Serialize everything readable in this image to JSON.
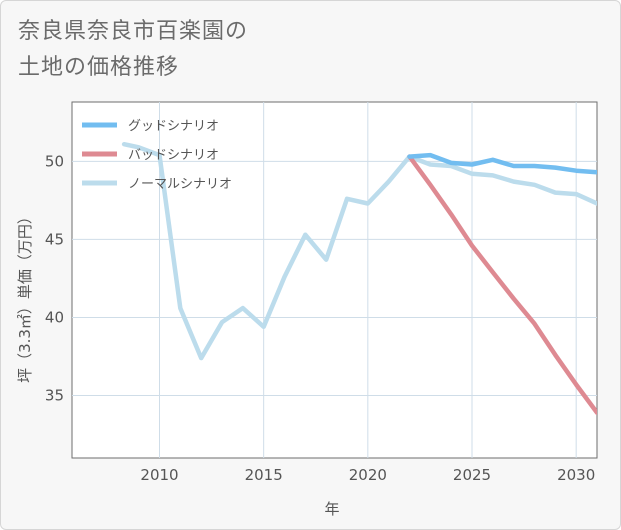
{
  "title": "奈良県奈良市百楽園の\n土地の価格推移",
  "chart_data": {
    "type": "line",
    "xlabel": "年",
    "ylabel": "坪（3.3㎡）単価（万円）",
    "xlim": [
      2005.8,
      2031
    ],
    "ylim": [
      31,
      53.8
    ],
    "x_ticks": [
      2010,
      2015,
      2020,
      2025,
      2030
    ],
    "y_ticks": [
      35,
      40,
      45,
      50
    ],
    "grid": true,
    "legend_position": "top-left",
    "series": [
      {
        "name": "グッドシナリオ",
        "color": "#72bdf0",
        "points": [
          [
            2022,
            50.3
          ],
          [
            2023,
            50.4
          ],
          [
            2024,
            49.9
          ],
          [
            2025,
            49.8
          ],
          [
            2026,
            50.1
          ],
          [
            2027,
            49.7
          ],
          [
            2028,
            49.7
          ],
          [
            2029,
            49.6
          ],
          [
            2030,
            49.4
          ],
          [
            2031,
            49.3
          ]
        ]
      },
      {
        "name": "バッドシナリオ",
        "color": "#de8a92",
        "points": [
          [
            2022,
            50.3
          ],
          [
            2023,
            48.5
          ],
          [
            2024,
            46.6
          ],
          [
            2025,
            44.6
          ],
          [
            2026,
            42.9
          ],
          [
            2027,
            41.2
          ],
          [
            2028,
            39.6
          ],
          [
            2029,
            37.6
          ],
          [
            2030,
            35.7
          ],
          [
            2031,
            33.9
          ]
        ]
      },
      {
        "name": "ノーマルシナリオ",
        "color": "#bcdcec",
        "points": [
          [
            2008.3,
            51.1
          ],
          [
            2009,
            50.9
          ],
          [
            2010,
            50.4
          ],
          [
            2011,
            40.6
          ],
          [
            2012,
            37.4
          ],
          [
            2013,
            39.7
          ],
          [
            2014,
            40.6
          ],
          [
            2015,
            39.4
          ],
          [
            2016,
            42.6
          ],
          [
            2017,
            45.3
          ],
          [
            2018,
            43.7
          ],
          [
            2019,
            47.6
          ],
          [
            2020,
            47.3
          ],
          [
            2021,
            48.7
          ],
          [
            2022,
            50.3
          ],
          [
            2023,
            49.8
          ],
          [
            2024,
            49.7
          ],
          [
            2025,
            49.2
          ],
          [
            2026,
            49.1
          ],
          [
            2027,
            48.7
          ],
          [
            2028,
            48.5
          ],
          [
            2029,
            48.0
          ],
          [
            2030,
            47.9
          ],
          [
            2031,
            47.3
          ]
        ]
      }
    ]
  }
}
